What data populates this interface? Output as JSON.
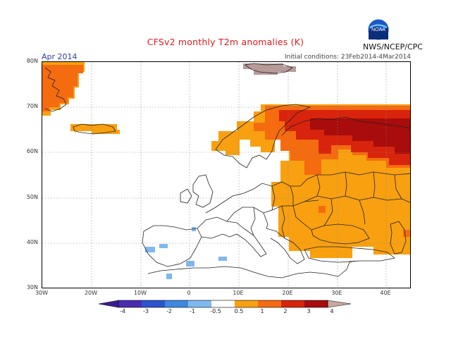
{
  "title": "CFSv2 monthly T2m anomalies (K)",
  "period": "Apr 2014",
  "initial_conditions": "Initial conditions: 23Feb2014-4Mar2014",
  "agency": "NWS/NCEP/CPC",
  "logo_text": "NOAA",
  "map": {
    "lat_labels": [
      "80N",
      "70N",
      "60N",
      "50N",
      "40N",
      "30N"
    ],
    "lon_labels": [
      "30W",
      "20W",
      "10W",
      "0",
      "10E",
      "20E",
      "30E",
      "40E"
    ],
    "lat_range": [
      30,
      80
    ],
    "lon_range": [
      -30,
      45
    ]
  },
  "colorbar": {
    "labels": [
      "-4",
      "-3",
      "-2",
      "-1",
      "-0.5",
      "0.5",
      "1",
      "2",
      "3",
      "4"
    ],
    "colors": [
      "#4a2cb0",
      "#2c54d0",
      "#3e88e0",
      "#7fb8f0",
      "#ffffff",
      "#f8a010",
      "#f56b10",
      "#d8240c",
      "#a80c0c",
      "#c8a8a0"
    ]
  },
  "colors": {
    "orange": "#f8a010",
    "dark_orange": "#f56b10",
    "red": "#d8240c",
    "dark_red": "#a80c0c",
    "light_blue": "#7fb8f0",
    "mauve": "#b89a98"
  }
}
